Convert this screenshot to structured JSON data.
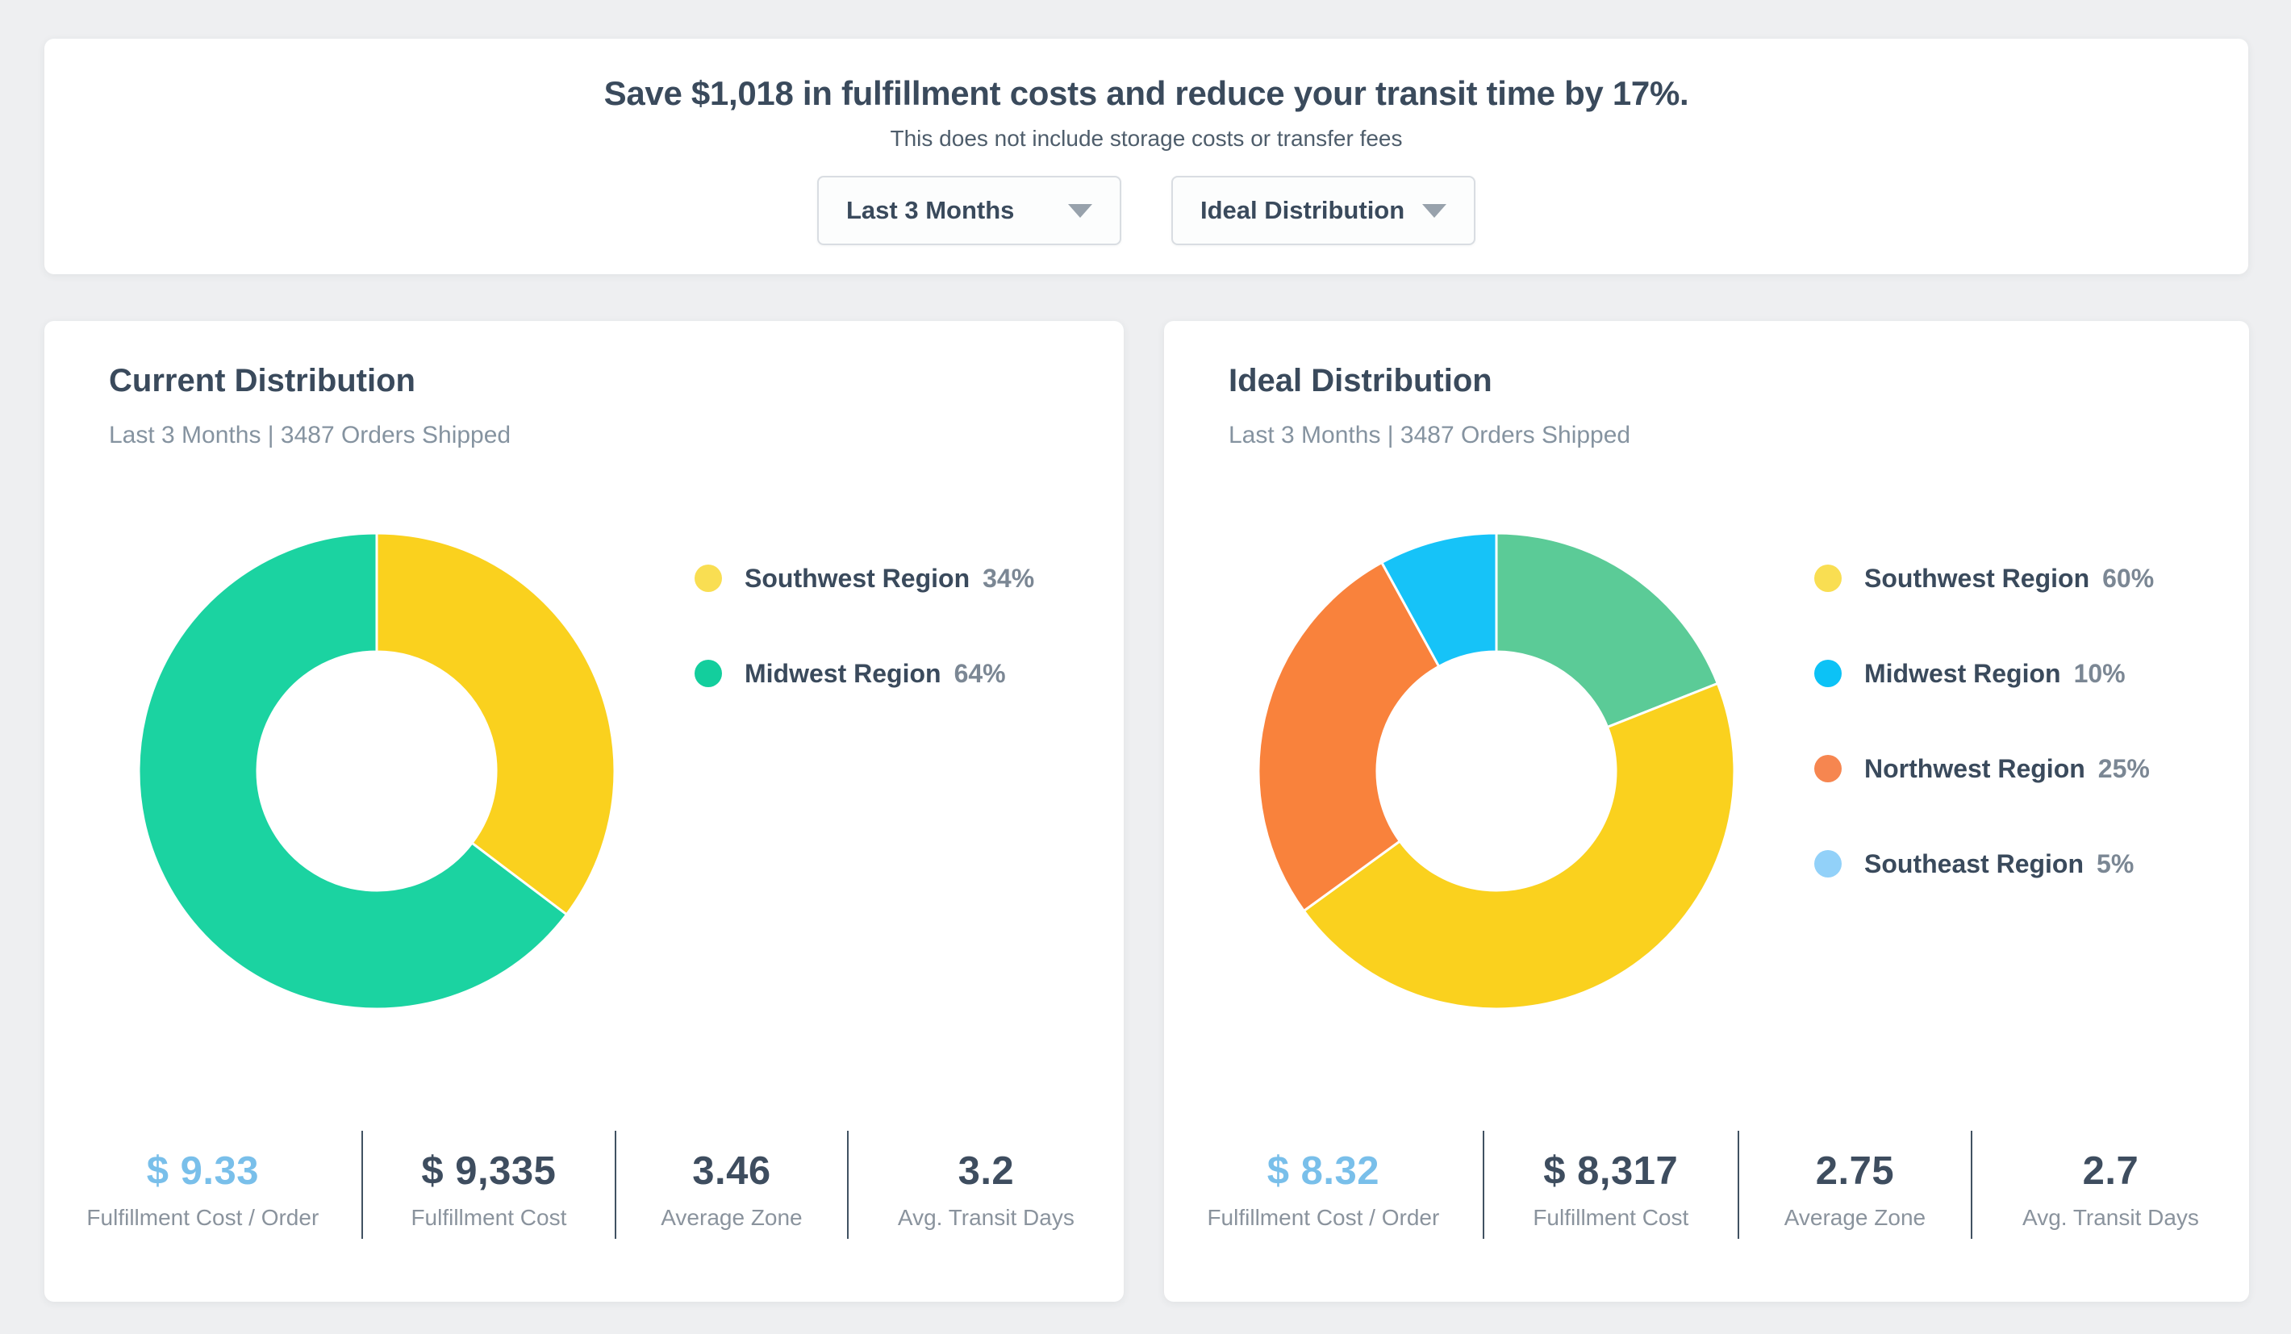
{
  "colors": {
    "page_background": "#eeeff1",
    "card_background": "#ffffff",
    "heading_text": "#3a4a5c",
    "meta_text": "#8593a0",
    "stat_highlight_blue": "#79bfea",
    "stat_divider": "#415262"
  },
  "summary": {
    "title": "Save $1,018 in fulfillment costs and reduce your transit time by 17%.",
    "subtitle": "This does not include storage costs or transfer fees",
    "dropdowns": [
      {
        "value": "Last 3 Months"
      },
      {
        "value": "Ideal Distribution"
      }
    ]
  },
  "cards": [
    {
      "title": "Current Distribution",
      "meta": "Last 3 Months | 3487 Orders Shipped",
      "legend": [
        {
          "label": "Southwest Region",
          "percent": "34%",
          "color": "#f9de52"
        },
        {
          "label": "Midwest Region",
          "percent": "64%",
          "color": "#13ce9d"
        }
      ],
      "stats": [
        {
          "value": "$ 9.33",
          "label": "Fulfillment Cost / Order"
        },
        {
          "value": "$ 9,335",
          "label": "Fulfillment Cost"
        },
        {
          "value": "3.46",
          "label": "Average Zone"
        },
        {
          "value": "3.2",
          "label": "Avg. Transit Days"
        }
      ]
    },
    {
      "title": "Ideal Distribution",
      "meta": "Last 3 Months | 3487 Orders Shipped",
      "legend": [
        {
          "label": "Southwest Region",
          "percent": "60%",
          "color": "#f9de52"
        },
        {
          "label": "Midwest Region",
          "percent": "10%",
          "color": "#0cc2f6"
        },
        {
          "label": "Northwest Region",
          "percent": "25%",
          "color": "#f68650"
        },
        {
          "label": "Southeast Region",
          "percent": "5%",
          "color": "#92d1f9"
        }
      ],
      "stats": [
        {
          "value": "$ 8.32",
          "label": "Fulfillment Cost / Order"
        },
        {
          "value": "$ 8,317",
          "label": "Fulfillment Cost"
        },
        {
          "value": "2.75",
          "label": "Average Zone"
        },
        {
          "value": "2.7",
          "label": "Avg. Transit Days"
        }
      ]
    }
  ],
  "chart_data": [
    {
      "type": "pie",
      "donut": true,
      "title": "Current Distribution",
      "subtitle": "Last 3 Months | 3487 Orders Shipped",
      "start": "top",
      "direction": "clockwise",
      "legend_position": "right",
      "segments": [
        {
          "label": "Southwest Region",
          "value": 34,
          "color": "#fad11e",
          "display_fraction": 0.353
        },
        {
          "label": "Midwest Region",
          "value": 64,
          "color": "#1bd3a1",
          "display_fraction": 0.647
        }
      ]
    },
    {
      "type": "pie",
      "donut": true,
      "title": "Ideal Distribution",
      "subtitle": "Last 3 Months | 3487 Orders Shipped",
      "start": "top",
      "direction": "clockwise",
      "legend_position": "right",
      "legend_values": [
        {
          "label": "Southwest Region",
          "value": 60
        },
        {
          "label": "Midwest Region",
          "value": 10
        },
        {
          "label": "Northwest Region",
          "value": 25
        },
        {
          "label": "Southeast Region",
          "value": 5
        }
      ],
      "segments": [
        {
          "color": "#5bcb97",
          "display_fraction": 0.19
        },
        {
          "color": "#fad11e",
          "display_fraction": 0.46
        },
        {
          "color": "#f9823c",
          "display_fraction": 0.27
        },
        {
          "color": "#16c3f8",
          "display_fraction": 0.08
        }
      ]
    }
  ]
}
